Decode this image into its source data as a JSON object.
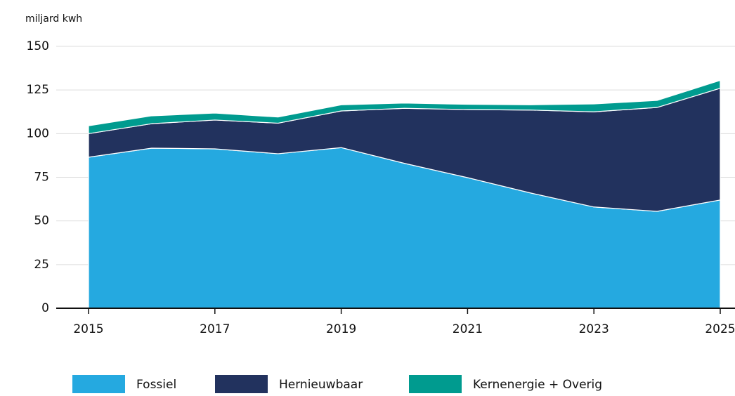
{
  "chart_data": {
    "type": "area",
    "stacked": true,
    "y_axis_label": "miljard kwh",
    "x": [
      2015,
      2016,
      2017,
      2018,
      2019,
      2020,
      2021,
      2022,
      2023,
      2024,
      2025
    ],
    "series": [
      {
        "name": "Fossiel",
        "color": "#25a9e0",
        "values": [
          86.5,
          91.7,
          91.3,
          88.5,
          92,
          83,
          74.8,
          66,
          58,
          55.5,
          62
        ]
      },
      {
        "name": "Hernieuwbaar",
        "color": "#22325e",
        "values": [
          13.5,
          14,
          16.5,
          17.5,
          21,
          31.5,
          39,
          47.5,
          54.5,
          59.5,
          64
        ]
      },
      {
        "name": "Kernenergie + Overig",
        "color": "#009b8f",
        "values": [
          4.5,
          4.5,
          4,
          3.5,
          3.5,
          3,
          3,
          3,
          4.5,
          4,
          4.5
        ]
      }
    ],
    "xlim": [
      2015,
      2025
    ],
    "xticks": [
      2015,
      2017,
      2019,
      2021,
      2023,
      2025
    ],
    "ylim": [
      0,
      150
    ],
    "yticks": [
      0,
      25,
      50,
      75,
      100,
      125,
      150
    ],
    "grid": true,
    "legend": "bottom"
  }
}
